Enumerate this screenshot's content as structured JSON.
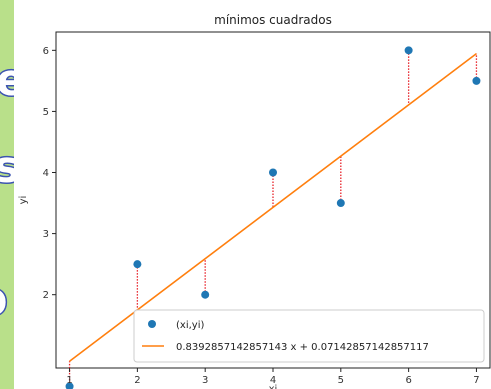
{
  "background_slide": {
    "fragments": [
      "e",
      "s",
      "o se"
    ],
    "text_color": "#ffffff",
    "outline_color": "#3c54b0",
    "background_color": "#b9e08a"
  },
  "chart_data": {
    "type": "scatter",
    "title": "mínimos cuadrados",
    "xlabel": "xi",
    "ylabel": "yi",
    "xlim": [
      0.8,
      7.2
    ],
    "ylim": [
      0.8,
      6.3
    ],
    "xticks": [
      1,
      2,
      3,
      4,
      5,
      6,
      7
    ],
    "yticks": [
      2,
      3,
      4,
      5,
      6
    ],
    "grid": false,
    "legend_position": "lower right",
    "series": [
      {
        "name": "(xi,yi)",
        "kind": "scatter",
        "color": "#1f77b4",
        "x": [
          1,
          2,
          3,
          4,
          5,
          6,
          7
        ],
        "y": [
          0.5,
          2.5,
          2.0,
          4.0,
          3.5,
          6.0,
          5.5
        ]
      },
      {
        "name": "0.8392857142857143 x + 0.07142857142857117",
        "kind": "line",
        "color": "#ff7f0e",
        "slope": 0.8392857142857143,
        "intercept": 0.07142857142857117
      }
    ],
    "residuals": {
      "style": "dotted",
      "color": "#e8232a"
    }
  }
}
